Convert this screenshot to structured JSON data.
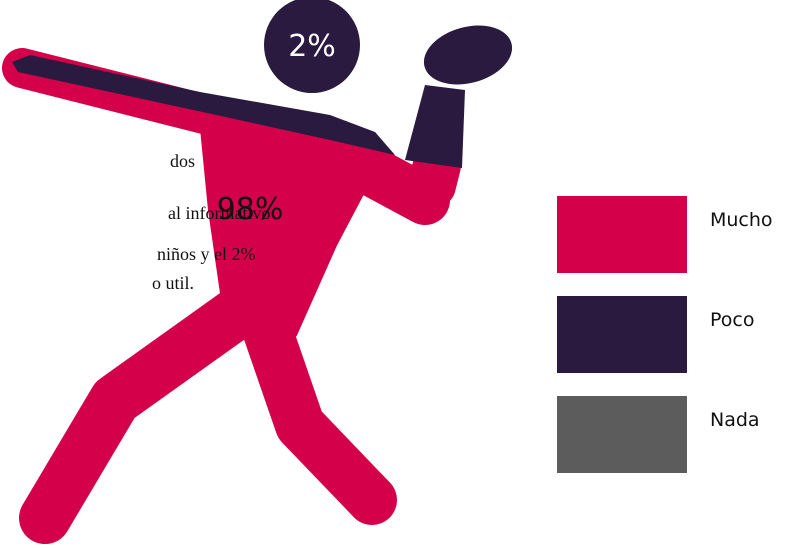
{
  "figure": {
    "labels": [
      "98%",
      "2%"
    ]
  },
  "text_lines": [
    "dos",
    "al informativo",
    "niños y el 2%",
    "o util."
  ],
  "legend": [
    {
      "label": "Mucho",
      "color": "#d4004a"
    },
    {
      "label": "Poco",
      "color": "#2b1a3f"
    },
    {
      "label": "Nada",
      "color": "#5c5c5c"
    }
  ]
}
